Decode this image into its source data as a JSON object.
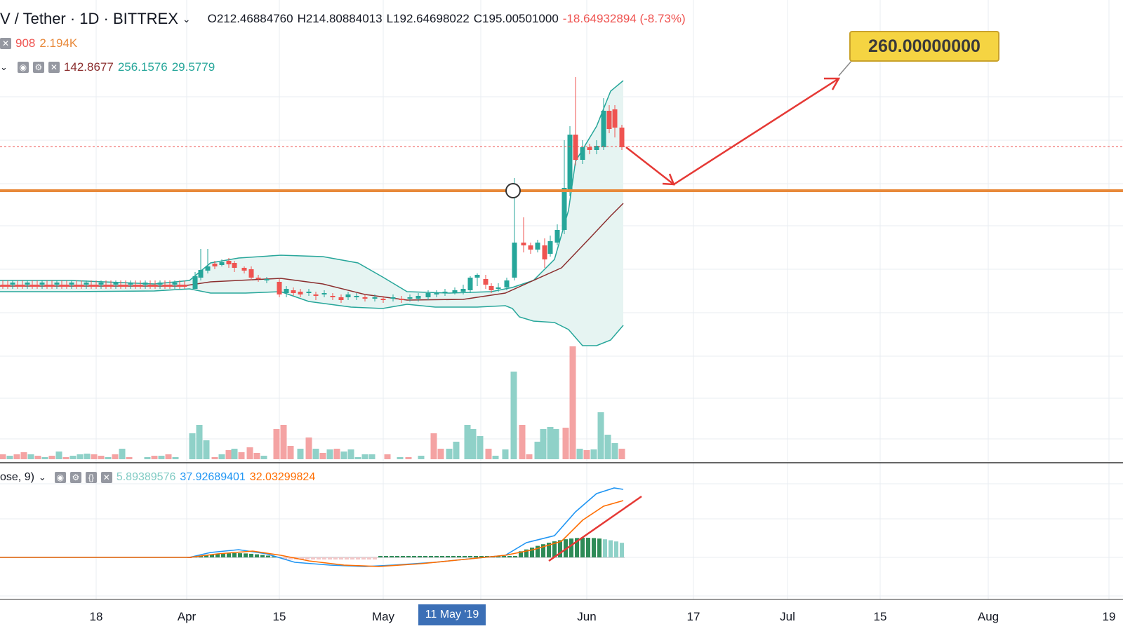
{
  "header": {
    "symbol": "V / Tether · 1D · BITTREX",
    "open": "O212.46884760",
    "high": "H214.80884013",
    "low": "L192.64698022",
    "close": "C195.00501000",
    "change": "-18.64932894 (-8.73%)",
    "chevron": "chevron-down-icon"
  },
  "volume_legend": {
    "v1": "908",
    "v2": "2.194K",
    "icon": "close-icon"
  },
  "bb_legend": {
    "v1": "142.8677",
    "v2": "256.1576",
    "v3": "29.5779"
  },
  "macd_legend": {
    "prefix": "ose, 9)",
    "hist": "5.89389576",
    "macd": "37.92689401",
    "signal": "32.03299824"
  },
  "callout": {
    "label": "260.00000000"
  },
  "x_axis": {
    "ticks": [
      "18",
      "Apr",
      "15",
      "May",
      "Jun",
      "17",
      "Jul",
      "15",
      "Aug",
      "19"
    ],
    "highlight": "11 May '19"
  },
  "colors": {
    "up": "#26a69a",
    "down": "#ef5350",
    "support": "#e8893a",
    "arrow": "#e53935",
    "bb_basis": "#8b2e2e",
    "bb_band": "#26a69a",
    "macd": "#2196f3",
    "signal": "#ff6d00"
  },
  "chart_data": {
    "type": "line",
    "support_level": 0.5,
    "target_level": 260
  }
}
